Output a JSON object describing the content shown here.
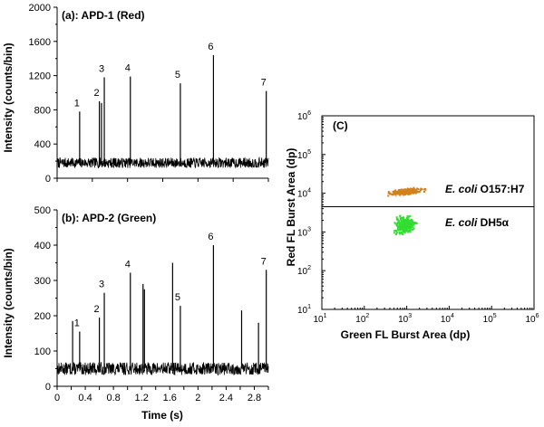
{
  "chart_data": [
    {
      "id": "panel_a",
      "type": "line",
      "title": "(a): APD-1 (Red)",
      "ylabel": "Intensity (counts/bin)",
      "xlabel": "",
      "xlim": [
        0,
        3
      ],
      "ylim": [
        0,
        2000
      ],
      "yticks": [
        0,
        400,
        800,
        1200,
        1600,
        2000
      ],
      "xticks": [
        0,
        0.5,
        1,
        1.5,
        2,
        2.5,
        3
      ],
      "background": {
        "mean": 180,
        "amplitude": 60
      },
      "peaks": [
        {
          "x": 0.32,
          "y": 780,
          "label": "1"
        },
        {
          "x": 0.6,
          "y": 900,
          "label": "2"
        },
        {
          "x": 0.67,
          "y": 1180,
          "label": "3"
        },
        {
          "x": 1.04,
          "y": 1190,
          "label": "4"
        },
        {
          "x": 1.75,
          "y": 1110,
          "label": "5"
        },
        {
          "x": 2.22,
          "y": 1440,
          "label": "6"
        },
        {
          "x": 2.97,
          "y": 1020,
          "label": "7"
        }
      ],
      "unlabeled_peaks": [
        {
          "x": 0.63,
          "y": 880
        }
      ]
    },
    {
      "id": "panel_b",
      "type": "line",
      "title": "(b): APD-2 (Green)",
      "ylabel": "Intensity (counts/bin)",
      "xlabel": "Time (s)",
      "xlim": [
        0,
        3
      ],
      "ylim": [
        0,
        500
      ],
      "yticks": [
        0,
        100,
        200,
        300,
        400,
        500
      ],
      "xticks": [
        0,
        0.2,
        0.4,
        0.6,
        0.8,
        1,
        1.2,
        1.4,
        1.6,
        1.8,
        2,
        2.2,
        2.4,
        2.6,
        2.8,
        3
      ],
      "xtick_labels": [
        "0",
        "",
        "0.4",
        "",
        "0.8",
        "",
        "1.2",
        "",
        "1.6",
        "",
        "2",
        "",
        "2.4",
        "",
        "2.8",
        ""
      ],
      "background": {
        "mean": 50,
        "amplitude": 18
      },
      "peaks": [
        {
          "x": 0.32,
          "y": 155,
          "label": "1"
        },
        {
          "x": 0.6,
          "y": 195,
          "label": "2"
        },
        {
          "x": 0.67,
          "y": 265,
          "label": "3"
        },
        {
          "x": 1.04,
          "y": 322,
          "label": "4"
        },
        {
          "x": 1.75,
          "y": 228,
          "label": "5"
        },
        {
          "x": 2.22,
          "y": 400,
          "label": "6"
        },
        {
          "x": 2.97,
          "y": 330,
          "label": "7"
        }
      ],
      "unlabeled_peaks": [
        {
          "x": 0.22,
          "y": 185
        },
        {
          "x": 1.22,
          "y": 290
        },
        {
          "x": 1.24,
          "y": 275
        },
        {
          "x": 1.64,
          "y": 350
        },
        {
          "x": 2.62,
          "y": 215
        },
        {
          "x": 2.86,
          "y": 180
        }
      ]
    },
    {
      "id": "panel_c",
      "type": "scatter",
      "title": "(C)",
      "xlabel": "Green FL Burst Area (dp)",
      "ylabel": "Red FL Burst Area (dp)",
      "xscale": "log",
      "yscale": "log",
      "xlim": [
        10,
        1000000
      ],
      "ylim": [
        10,
        1000000
      ],
      "ticks_exponents": [
        1,
        2,
        3,
        4,
        5,
        6
      ],
      "threshold_line_y": 4500,
      "series": [
        {
          "name": "E. coli O157:H7",
          "name_italic": "E. coli",
          "name_rest": " O157:H7",
          "color": "#d4811c",
          "center": [
            1000,
            11000
          ],
          "x_range": [
            300,
            4000
          ],
          "y_range": [
            8500,
            14000
          ],
          "n_points": 260
        },
        {
          "name": "E. coli DH5α",
          "name_italic": "E. coli",
          "name_rest": " DH5α",
          "color": "#33dd33",
          "center": [
            900,
            1500
          ],
          "x_range": [
            500,
            2400
          ],
          "y_range": [
            800,
            3500
          ],
          "n_points": 320
        }
      ]
    }
  ]
}
